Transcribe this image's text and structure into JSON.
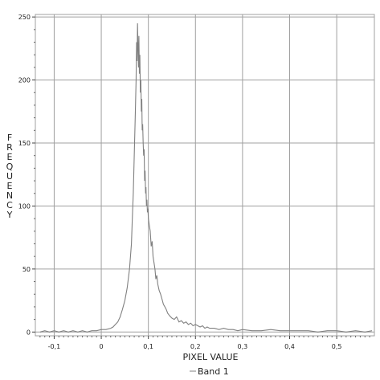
{
  "chart_data": {
    "type": "line",
    "title": "",
    "xlabel": "PIXEL VALUE",
    "ylabel": "FREQUENCY",
    "xlim": [
      -0.14,
      0.58
    ],
    "ylim": [
      -3,
      252
    ],
    "x_ticks": [
      -0.1,
      0,
      0.1,
      0.2,
      0.3,
      0.4,
      0.5
    ],
    "x_tick_labels": [
      "-0,1",
      "0",
      "0,1",
      "0,2",
      "0,3",
      "0,4",
      "0,5"
    ],
    "y_ticks": [
      0,
      50,
      100,
      150,
      200,
      250
    ],
    "y_tick_labels": [
      "0",
      "50",
      "100",
      "150",
      "200",
      "250"
    ],
    "grid": true,
    "legend_position": "bottom-center",
    "series": [
      {
        "name": "Band 1",
        "color": "#808080",
        "x": [
          -0.13,
          -0.12,
          -0.11,
          -0.1,
          -0.09,
          -0.08,
          -0.07,
          -0.06,
          -0.05,
          -0.04,
          -0.03,
          -0.02,
          -0.01,
          0.0,
          0.01,
          0.02,
          0.025,
          0.03,
          0.035,
          0.04,
          0.045,
          0.05,
          0.055,
          0.06,
          0.062,
          0.064,
          0.066,
          0.068,
          0.07,
          0.072,
          0.074,
          0.075,
          0.076,
          0.077,
          0.078,
          0.079,
          0.08,
          0.081,
          0.082,
          0.083,
          0.084,
          0.085,
          0.086,
          0.087,
          0.088,
          0.089,
          0.09,
          0.091,
          0.092,
          0.093,
          0.094,
          0.095,
          0.096,
          0.097,
          0.098,
          0.099,
          0.1,
          0.102,
          0.104,
          0.106,
          0.108,
          0.11,
          0.112,
          0.114,
          0.116,
          0.118,
          0.12,
          0.123,
          0.126,
          0.129,
          0.132,
          0.135,
          0.138,
          0.141,
          0.145,
          0.15,
          0.155,
          0.16,
          0.165,
          0.17,
          0.175,
          0.18,
          0.185,
          0.19,
          0.195,
          0.2,
          0.205,
          0.21,
          0.215,
          0.22,
          0.225,
          0.23,
          0.24,
          0.25,
          0.26,
          0.27,
          0.28,
          0.29,
          0.3,
          0.32,
          0.34,
          0.36,
          0.38,
          0.4,
          0.42,
          0.44,
          0.46,
          0.48,
          0.5,
          0.52,
          0.54,
          0.56,
          0.575
        ],
        "values": [
          0,
          1,
          0,
          1,
          0,
          1,
          0,
          1,
          0,
          1,
          0,
          1,
          1,
          2,
          2,
          3,
          4,
          6,
          8,
          12,
          18,
          25,
          35,
          50,
          60,
          70,
          90,
          110,
          140,
          170,
          200,
          230,
          215,
          245,
          225,
          210,
          235,
          205,
          220,
          190,
          200,
          175,
          185,
          160,
          165,
          150,
          140,
          145,
          120,
          128,
          110,
          115,
          100,
          105,
          95,
          98,
          90,
          85,
          80,
          68,
          72,
          60,
          55,
          50,
          42,
          45,
          38,
          33,
          30,
          26,
          22,
          20,
          18,
          15,
          13,
          11,
          10,
          12,
          8,
          9,
          7,
          8,
          6,
          7,
          5,
          6,
          5,
          4,
          5,
          3,
          4,
          3,
          3,
          2,
          3,
          2,
          2,
          1,
          2,
          1,
          1,
          2,
          1,
          1,
          1,
          1,
          0,
          1,
          1,
          0,
          1,
          0,
          1
        ]
      }
    ]
  }
}
